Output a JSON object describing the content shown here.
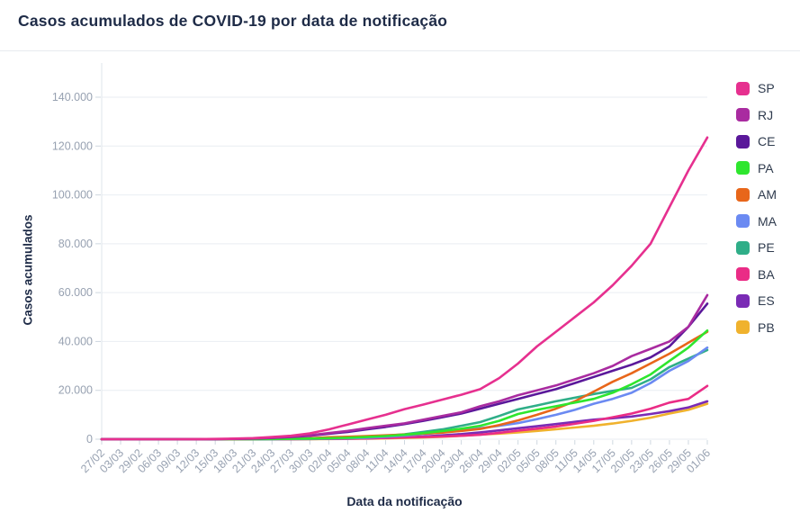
{
  "chart_data": {
    "type": "line",
    "title": "Casos acumulados de COVID-19 por data de notificação",
    "xlabel": "Data da notificação",
    "ylabel": "Casos acumulados",
    "ylim": [
      0,
      140000
    ],
    "ytick_step": 20000,
    "ytick_labels": [
      "0",
      "20.000",
      "40.000",
      "60.000",
      "80.000",
      "100.000",
      "120.000",
      "140.000"
    ],
    "grid": "horizontal",
    "legend_position": "right",
    "x_categories": [
      "27/02",
      "03/03",
      "29/02",
      "06/03",
      "09/03",
      "12/03",
      "15/03",
      "18/03",
      "21/03",
      "24/03",
      "27/03",
      "30/03",
      "02/04",
      "05/04",
      "08/04",
      "11/04",
      "14/04",
      "17/04",
      "20/04",
      "23/04",
      "26/04",
      "29/04",
      "02/05",
      "05/05",
      "08/05",
      "11/05",
      "14/05",
      "17/05",
      "20/05",
      "23/05",
      "26/05",
      "29/05",
      "01/06"
    ],
    "series": [
      {
        "name": "SP",
        "color": "#e6308f",
        "values": [
          1,
          2,
          2,
          10,
          16,
          30,
          100,
          240,
          450,
          900,
          1400,
          2400,
          4000,
          6000,
          8000,
          10000,
          12300,
          14200,
          16200,
          18200,
          20500,
          25000,
          31000,
          38000,
          44000,
          50000,
          56000,
          63000,
          71000,
          80000,
          95000,
          110000,
          123500
        ]
      },
      {
        "name": "RJ",
        "color": "#a92ba0",
        "values": [
          0,
          0,
          0,
          1,
          5,
          15,
          50,
          120,
          300,
          600,
          1000,
          1600,
          2500,
          3400,
          4500,
          5500,
          6500,
          8000,
          9500,
          11000,
          13500,
          15500,
          18000,
          20000,
          22000,
          24500,
          27000,
          30000,
          34000,
          37000,
          40000,
          46000,
          59000
        ]
      },
      {
        "name": "CE",
        "color": "#5a189a",
        "values": [
          0,
          0,
          0,
          1,
          3,
          10,
          40,
          100,
          250,
          500,
          900,
          1400,
          2200,
          3000,
          4000,
          5000,
          6200,
          7500,
          9000,
          10500,
          12500,
          14500,
          16500,
          18500,
          20500,
          23000,
          25500,
          28000,
          30500,
          33500,
          38000,
          46000,
          55500
        ]
      },
      {
        "name": "PA",
        "color": "#2ee62e",
        "values": [
          0,
          0,
          0,
          0,
          0,
          2,
          5,
          15,
          40,
          90,
          150,
          250,
          400,
          600,
          900,
          1300,
          1800,
          2500,
          3300,
          4300,
          5500,
          7500,
          10300,
          12000,
          13500,
          15000,
          16500,
          19000,
          22500,
          26500,
          32000,
          37500,
          44500
        ]
      },
      {
        "name": "AM",
        "color": "#e8661a",
        "values": [
          0,
          0,
          0,
          0,
          1,
          2,
          10,
          30,
          80,
          150,
          250,
          400,
          800,
          1000,
          1300,
          1600,
          1900,
          2300,
          2700,
          3400,
          4200,
          5800,
          7700,
          10000,
          12500,
          15500,
          19500,
          23500,
          27000,
          31000,
          35000,
          39500,
          44000
        ]
      },
      {
        "name": "MA",
        "color": "#6b8af2",
        "values": [
          0,
          0,
          0,
          0,
          0,
          0,
          0,
          5,
          20,
          50,
          100,
          150,
          250,
          400,
          600,
          1000,
          1500,
          2100,
          2800,
          3600,
          4500,
          5500,
          6600,
          8200,
          10000,
          12000,
          14500,
          16500,
          19000,
          23000,
          28000,
          32000,
          37500
        ]
      },
      {
        "name": "PE",
        "color": "#2fae88",
        "values": [
          0,
          0,
          0,
          0,
          1,
          2,
          10,
          30,
          50,
          100,
          180,
          300,
          500,
          700,
          900,
          1400,
          2000,
          3000,
          4000,
          5500,
          7000,
          9500,
          12200,
          13800,
          15500,
          17000,
          18500,
          19800,
          21000,
          24500,
          29500,
          33000,
          36500
        ]
      },
      {
        "name": "BA",
        "color": "#ea2c86",
        "values": [
          0,
          0,
          0,
          0,
          1,
          2,
          3,
          10,
          20,
          40,
          60,
          100,
          150,
          250,
          350,
          500,
          700,
          900,
          1100,
          1400,
          1800,
          2600,
          3500,
          4300,
          5200,
          6300,
          7500,
          9000,
          10500,
          12500,
          15000,
          16500,
          21800
        ]
      },
      {
        "name": "ES",
        "color": "#7a2bb5",
        "values": [
          0,
          0,
          0,
          0,
          0,
          1,
          2,
          5,
          15,
          30,
          50,
          80,
          130,
          220,
          350,
          500,
          800,
          1100,
          1600,
          2100,
          2800,
          3600,
          4500,
          5300,
          6200,
          7100,
          8000,
          8600,
          9300,
          10300,
          11500,
          13000,
          15500
        ]
      },
      {
        "name": "PB",
        "color": "#f0b22d",
        "values": [
          0,
          0,
          0,
          0,
          0,
          0,
          1,
          2,
          5,
          10,
          20,
          40,
          80,
          130,
          220,
          350,
          500,
          700,
          1000,
          1400,
          1900,
          2300,
          2800,
          3400,
          4100,
          4800,
          5500,
          6400,
          7500,
          8800,
          10500,
          12000,
          14500
        ]
      }
    ]
  },
  "style_colors": {
    "title_text": "#1e2b47",
    "tick_text": "#97a1b1",
    "grid_line": "#e9eef2",
    "axis_line": "#dfe5eb",
    "tick_mark": "#cfd8e0",
    "background": "#ffffff",
    "divider": "#e7ebef"
  }
}
